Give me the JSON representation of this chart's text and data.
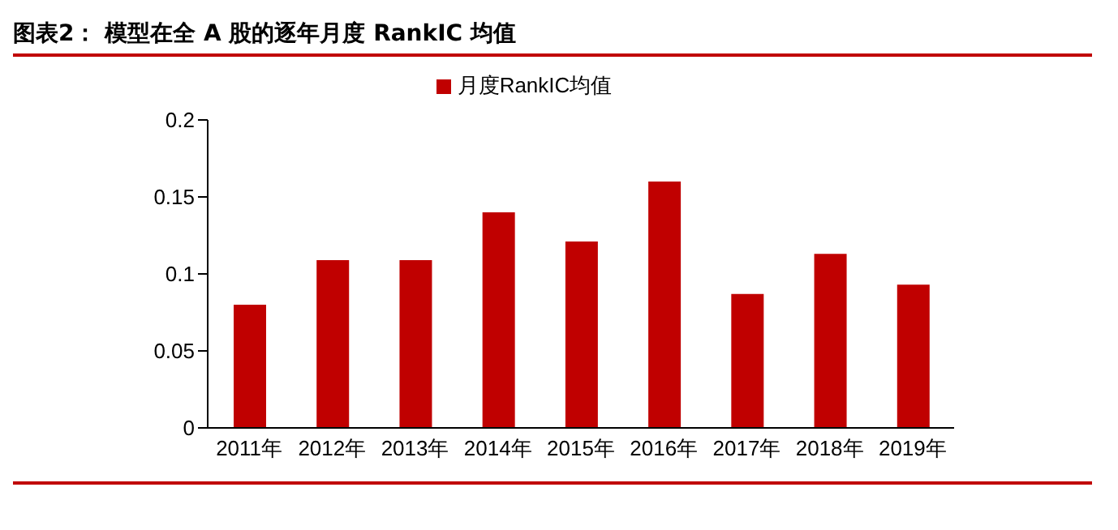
{
  "chart_data": {
    "type": "bar",
    "title": "图表2：  模型在全 A 股的逐年月度 RankIC 均值",
    "categories": [
      "2011年",
      "2012年",
      "2013年",
      "2014年",
      "2015年",
      "2016年",
      "2017年",
      "2018年",
      "2019年"
    ],
    "series": [
      {
        "name": "月度RankIC均值",
        "color": "#c00000",
        "values": [
          0.08,
          0.109,
          0.109,
          0.14,
          0.121,
          0.16,
          0.087,
          0.113,
          0.093
        ]
      }
    ],
    "ylim": [
      0,
      0.2
    ],
    "yticks": [
      0,
      0.05,
      0.1,
      0.15,
      0.2
    ],
    "legend": "top",
    "grid": false
  }
}
